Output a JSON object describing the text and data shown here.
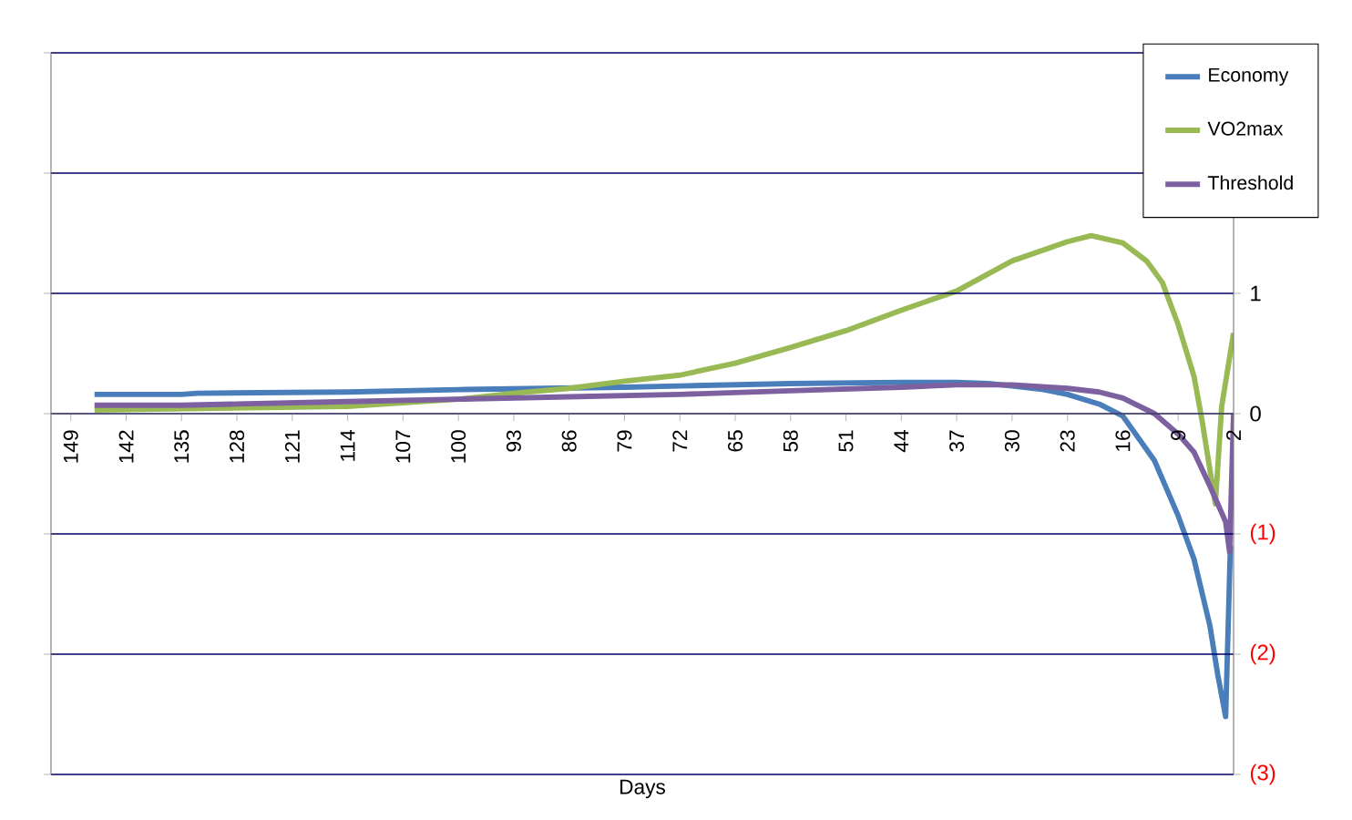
{
  "chart_data": {
    "type": "line",
    "xlabel": "Days",
    "x": [
      146,
      135,
      133,
      114,
      100,
      79,
      72,
      58,
      44,
      37,
      33,
      30,
      26,
      23,
      19,
      16,
      12,
      9,
      7,
      5,
      4,
      3,
      2.4
    ],
    "xlim": [
      151.5,
      2
    ],
    "xticks": [
      149,
      142,
      135,
      128,
      121,
      114,
      107,
      100,
      93,
      86,
      79,
      72,
      65,
      58,
      51,
      44,
      37,
      30,
      23,
      16,
      9,
      2
    ],
    "ylim": [
      -3,
      3
    ],
    "yticks": [
      {
        "value": -3,
        "label": "(3)"
      },
      {
        "value": -2,
        "label": "(2)"
      },
      {
        "value": -1,
        "label": "(1)"
      },
      0,
      1,
      {
        "value": 2,
        "label": null
      },
      {
        "value": 3,
        "label": null
      }
    ],
    "grid": "y",
    "legend": "top right",
    "line_style": "solid",
    "marker": "none",
    "series": [
      {
        "name": "Economy",
        "color": "#4a7ebb",
        "values": [
          0.16,
          0.16,
          0.17,
          0.18,
          0.2,
          0.22,
          0.23,
          0.25,
          0.26,
          0.26,
          0.25,
          0.23,
          0.2,
          0.16,
          0.08,
          -0.02,
          -0.39,
          -0.85,
          -1.21,
          -1.76,
          -2.17,
          -2.52,
          -1.1
        ]
      },
      {
        "name": "VO2max",
        "color": "#98b954",
        "x": [
          146,
          114,
          100,
          93,
          86,
          79,
          72,
          65,
          58,
          51,
          44,
          37,
          30,
          23,
          20,
          16,
          13,
          11,
          9,
          7,
          6,
          4.3,
          3.5,
          2
        ],
        "values": [
          0.03,
          0.06,
          0.12,
          0.17,
          0.21,
          0.27,
          0.32,
          0.42,
          0.55,
          0.69,
          0.86,
          1.02,
          1.27,
          1.43,
          1.48,
          1.42,
          1.27,
          1.09,
          0.74,
          0.31,
          -0.05,
          -0.75,
          0.06,
          0.67
        ]
      },
      {
        "name": "Threshold",
        "color": "#7d60a0",
        "x": [
          146,
          135,
          128,
          114,
          100,
          86,
          72,
          58,
          44,
          37,
          30,
          23,
          19,
          16,
          12,
          9,
          7,
          5,
          4,
          3,
          2.5,
          2
        ],
        "values": [
          0.07,
          0.07,
          0.08,
          0.1,
          0.12,
          0.14,
          0.16,
          0.19,
          0.22,
          0.24,
          0.24,
          0.21,
          0.18,
          0.13,
          0.0,
          -0.17,
          -0.32,
          -0.6,
          -0.75,
          -0.9,
          -1.15,
          0
        ]
      }
    ]
  }
}
